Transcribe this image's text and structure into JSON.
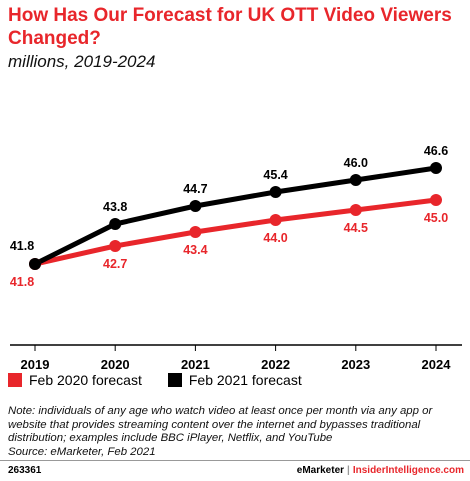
{
  "title": "How Has Our Forecast for UK OTT Video Viewers Changed?",
  "subtitle": "millions, 2019-2024",
  "chart_data": {
    "type": "line",
    "x": [
      "2019",
      "2020",
      "2021",
      "2022",
      "2023",
      "2024"
    ],
    "series": [
      {
        "name": "Feb 2020 forecast",
        "color": "#e8262b",
        "values": [
          41.8,
          42.7,
          43.4,
          44.0,
          44.5,
          45.0
        ],
        "labels": [
          "41.8",
          "42.7",
          "43.4",
          "44.0",
          "44.5",
          "45.0"
        ]
      },
      {
        "name": "Feb 2021 forecast",
        "color": "#000000",
        "values": [
          41.8,
          43.8,
          44.7,
          45.4,
          46.0,
          46.6
        ],
        "labels": [
          "41.8",
          "43.8",
          "44.7",
          "45.4",
          "46.0",
          "46.6"
        ]
      }
    ],
    "ylim": [
      38.0,
      49.0
    ],
    "grid": false,
    "legend": "bottom-left"
  },
  "note": "Note: individuals of any age who watch video at least once per month via any app or website that provides streaming content over the internet and bypasses traditional distribution; examples include BBC iPlayer, Netflix, and YouTube",
  "source": "Source: eMarketer, Feb 2021",
  "footer": {
    "id": "263361",
    "brand": "eMarketer",
    "separator": "|",
    "site": "InsiderIntelligence.com"
  }
}
